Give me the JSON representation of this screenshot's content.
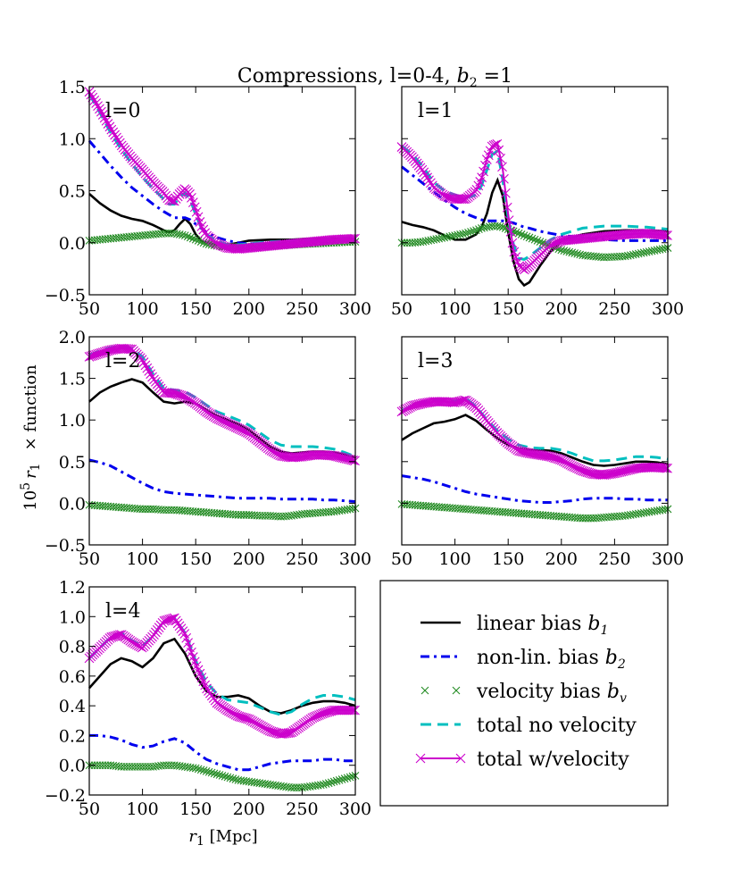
{
  "title": "Compressions, l=0-4, ",
  "title_math": "b",
  "title_math_sub": "2",
  "title_math_tail": " =1",
  "ylabel_pre": "10",
  "ylabel_sup": "5",
  "ylabel_var": "r",
  "ylabel_sub": "1",
  "ylabel_post": "× function",
  "xlabel_var": "r",
  "xlabel_sub": "1",
  "xlabel_post": " [Mpc]",
  "legend": [
    {
      "label": "linear bias ",
      "math": "b",
      "sub": "1"
    },
    {
      "label": "non-lin. bias ",
      "math": "b",
      "sub": "2"
    },
    {
      "label": "velocity bias ",
      "math": "b",
      "sub": "v"
    },
    {
      "label": "total no velocity",
      "math": "",
      "sub": ""
    },
    {
      "label": "total w/velocity",
      "math": "",
      "sub": ""
    }
  ],
  "colors": {
    "linear": "#000000",
    "nonlin": "#0000ee",
    "velocity": "#228b22",
    "total_novel": "#00bfbf",
    "total_vel": "#cc00cc"
  },
  "chart_data": [
    {
      "type": "line",
      "panel_label": "l=0",
      "xlim": [
        50,
        300
      ],
      "ylim": [
        -0.5,
        1.5
      ],
      "xticks": [
        "50",
        "100",
        "150",
        "200",
        "250",
        "300"
      ],
      "yticks": [
        "−0.5",
        "0.0",
        "0.5",
        "1.0",
        "1.5"
      ],
      "ytick_values": [
        -0.5,
        0.0,
        0.5,
        1.0,
        1.5
      ],
      "x": [
        50,
        60,
        70,
        80,
        90,
        100,
        110,
        120,
        125,
        130,
        135,
        140,
        145,
        150,
        155,
        160,
        170,
        180,
        190,
        200,
        220,
        240,
        260,
        280,
        300
      ],
      "series": [
        {
          "name": "linear bias",
          "values": [
            0.47,
            0.38,
            0.31,
            0.26,
            0.23,
            0.21,
            0.17,
            0.12,
            0.1,
            0.12,
            0.18,
            0.23,
            0.18,
            0.08,
            0.02,
            0.0,
            -0.02,
            -0.02,
            0.0,
            0.02,
            0.03,
            0.03,
            0.04,
            0.04,
            0.04
          ]
        },
        {
          "name": "non-lin. bias",
          "values": [
            0.98,
            0.86,
            0.74,
            0.63,
            0.53,
            0.45,
            0.37,
            0.3,
            0.27,
            0.24,
            0.24,
            0.24,
            0.22,
            0.18,
            0.14,
            0.1,
            0.05,
            0.02,
            0.0,
            -0.01,
            -0.01,
            0.0,
            0.0,
            0.01,
            0.01
          ]
        },
        {
          "name": "velocity bias",
          "values": [
            0.02,
            0.03,
            0.04,
            0.05,
            0.06,
            0.07,
            0.08,
            0.09,
            0.09,
            0.09,
            0.08,
            0.07,
            0.05,
            0.03,
            0.01,
            -0.01,
            -0.03,
            -0.04,
            -0.04,
            -0.04,
            -0.03,
            -0.02,
            -0.01,
            0.0,
            0.01
          ]
        },
        {
          "name": "total no velocity",
          "values": [
            1.43,
            1.25,
            1.06,
            0.9,
            0.76,
            0.63,
            0.52,
            0.42,
            0.37,
            0.37,
            0.44,
            0.48,
            0.41,
            0.27,
            0.15,
            0.08,
            0.02,
            -0.02,
            -0.02,
            -0.01,
            0.01,
            0.02,
            0.03,
            0.04,
            0.04
          ]
        },
        {
          "name": "total w/velocity",
          "values": [
            1.45,
            1.28,
            1.1,
            0.94,
            0.81,
            0.7,
            0.58,
            0.48,
            0.41,
            0.4,
            0.47,
            0.52,
            0.46,
            0.32,
            0.17,
            0.07,
            -0.01,
            -0.05,
            -0.06,
            -0.05,
            -0.03,
            -0.01,
            0.01,
            0.03,
            0.04
          ]
        }
      ]
    },
    {
      "type": "line",
      "panel_label": "l=1",
      "xlim": [
        50,
        300
      ],
      "ylim": [
        -0.5,
        1.5
      ],
      "xticks": [
        "50",
        "100",
        "150",
        "200",
        "250",
        "300"
      ],
      "yticks": [],
      "ytick_values": [
        -0.5,
        0.0,
        0.5,
        1.0,
        1.5
      ],
      "x": [
        50,
        60,
        70,
        80,
        90,
        100,
        110,
        120,
        125,
        130,
        135,
        140,
        145,
        150,
        155,
        160,
        165,
        170,
        180,
        190,
        200,
        220,
        240,
        260,
        280,
        300
      ],
      "series": [
        {
          "name": "linear bias",
          "values": [
            0.2,
            0.17,
            0.15,
            0.12,
            0.07,
            0.03,
            0.03,
            0.08,
            0.15,
            0.28,
            0.48,
            0.6,
            0.45,
            0.1,
            -0.18,
            -0.35,
            -0.41,
            -0.38,
            -0.22,
            -0.08,
            0.02,
            0.08,
            0.11,
            0.12,
            0.12,
            0.11
          ]
        },
        {
          "name": "non-lin. bias",
          "values": [
            0.73,
            0.65,
            0.57,
            0.49,
            0.41,
            0.34,
            0.28,
            0.24,
            0.22,
            0.21,
            0.21,
            0.21,
            0.21,
            0.2,
            0.19,
            0.17,
            0.15,
            0.14,
            0.11,
            0.09,
            0.07,
            0.05,
            0.03,
            0.02,
            0.02,
            0.02
          ]
        },
        {
          "name": "velocity bias",
          "values": [
            0.0,
            0.0,
            0.01,
            0.03,
            0.05,
            0.07,
            0.09,
            0.12,
            0.14,
            0.15,
            0.16,
            0.16,
            0.15,
            0.13,
            0.11,
            0.09,
            0.07,
            0.05,
            0.01,
            -0.03,
            -0.07,
            -0.12,
            -0.14,
            -0.13,
            -0.09,
            -0.05
          ]
        },
        {
          "name": "total no velocity",
          "values": [
            0.93,
            0.85,
            0.73,
            0.58,
            0.5,
            0.46,
            0.43,
            0.46,
            0.55,
            0.7,
            0.85,
            0.88,
            0.6,
            0.24,
            -0.02,
            -0.15,
            -0.16,
            -0.13,
            -0.05,
            0.03,
            0.08,
            0.14,
            0.16,
            0.16,
            0.15,
            0.13
          ]
        },
        {
          "name": "total w/velocity",
          "values": [
            0.92,
            0.82,
            0.69,
            0.53,
            0.45,
            0.42,
            0.42,
            0.5,
            0.62,
            0.8,
            0.93,
            0.95,
            0.7,
            0.27,
            -0.07,
            -0.22,
            -0.26,
            -0.22,
            -0.12,
            -0.02,
            0.02,
            0.04,
            0.06,
            0.08,
            0.09,
            0.07
          ]
        }
      ]
    },
    {
      "type": "line",
      "panel_label": "l=2",
      "xlim": [
        50,
        300
      ],
      "ylim": [
        -0.5,
        2.0
      ],
      "xticks": [
        "50",
        "100",
        "150",
        "200",
        "250",
        "300"
      ],
      "yticks": [
        "−0.5",
        "0.0",
        "0.5",
        "1.0",
        "1.5",
        "2.0"
      ],
      "ytick_values": [
        -0.5,
        0.0,
        0.5,
        1.0,
        1.5,
        2.0
      ],
      "x": [
        50,
        60,
        70,
        80,
        90,
        100,
        110,
        120,
        130,
        140,
        150,
        160,
        170,
        180,
        190,
        200,
        210,
        220,
        230,
        240,
        250,
        260,
        270,
        280,
        290,
        300
      ],
      "series": [
        {
          "name": "linear bias",
          "values": [
            1.22,
            1.33,
            1.4,
            1.45,
            1.49,
            1.45,
            1.33,
            1.22,
            1.2,
            1.22,
            1.2,
            1.12,
            1.05,
            1.0,
            0.95,
            0.88,
            0.78,
            0.68,
            0.62,
            0.6,
            0.61,
            0.62,
            0.62,
            0.61,
            0.58,
            0.55
          ]
        },
        {
          "name": "non-lin. bias",
          "values": [
            0.52,
            0.49,
            0.45,
            0.38,
            0.31,
            0.24,
            0.18,
            0.14,
            0.12,
            0.11,
            0.1,
            0.09,
            0.08,
            0.07,
            0.06,
            0.06,
            0.06,
            0.06,
            0.05,
            0.05,
            0.05,
            0.05,
            0.04,
            0.04,
            0.03,
            0.02
          ]
        },
        {
          "name": "velocity bias",
          "values": [
            -0.02,
            -0.03,
            -0.04,
            -0.05,
            -0.06,
            -0.07,
            -0.07,
            -0.08,
            -0.08,
            -0.09,
            -0.1,
            -0.11,
            -0.12,
            -0.13,
            -0.14,
            -0.14,
            -0.15,
            -0.15,
            -0.16,
            -0.15,
            -0.13,
            -0.12,
            -0.11,
            -0.1,
            -0.08,
            -0.06
          ]
        },
        {
          "name": "total no velocity",
          "values": [
            1.78,
            1.83,
            1.87,
            1.88,
            1.86,
            1.76,
            1.55,
            1.38,
            1.36,
            1.34,
            1.27,
            1.18,
            1.1,
            1.05,
            1.0,
            0.94,
            0.85,
            0.76,
            0.7,
            0.68,
            0.68,
            0.68,
            0.67,
            0.65,
            0.61,
            0.56
          ]
        },
        {
          "name": "total w/velocity",
          "values": [
            1.76,
            1.8,
            1.84,
            1.86,
            1.85,
            1.72,
            1.5,
            1.33,
            1.32,
            1.28,
            1.2,
            1.1,
            1.02,
            0.96,
            0.9,
            0.84,
            0.74,
            0.64,
            0.57,
            0.55,
            0.56,
            0.58,
            0.58,
            0.57,
            0.54,
            0.51
          ]
        }
      ]
    },
    {
      "type": "line",
      "panel_label": "l=3",
      "xlim": [
        50,
        300
      ],
      "ylim": [
        -0.5,
        2.0
      ],
      "xticks": [
        "50",
        "100",
        "150",
        "200",
        "250",
        "300"
      ],
      "yticks": [],
      "ytick_values": [
        -0.5,
        0.0,
        0.5,
        1.0,
        1.5,
        2.0
      ],
      "x": [
        50,
        60,
        70,
        80,
        90,
        100,
        110,
        120,
        130,
        140,
        150,
        160,
        170,
        180,
        190,
        200,
        210,
        220,
        230,
        240,
        250,
        260,
        270,
        280,
        290,
        300
      ],
      "series": [
        {
          "name": "linear bias",
          "values": [
            0.76,
            0.84,
            0.9,
            0.96,
            0.98,
            1.01,
            1.06,
            0.99,
            0.88,
            0.78,
            0.7,
            0.66,
            0.64,
            0.64,
            0.63,
            0.6,
            0.55,
            0.5,
            0.46,
            0.45,
            0.46,
            0.48,
            0.5,
            0.5,
            0.49,
            0.47
          ]
        },
        {
          "name": "non-lin. bias",
          "values": [
            0.33,
            0.31,
            0.29,
            0.26,
            0.22,
            0.18,
            0.14,
            0.11,
            0.09,
            0.07,
            0.05,
            0.03,
            0.02,
            0.01,
            0.01,
            0.02,
            0.03,
            0.05,
            0.06,
            0.06,
            0.06,
            0.05,
            0.05,
            0.04,
            0.04,
            0.04
          ]
        },
        {
          "name": "velocity bias",
          "values": [
            -0.01,
            -0.02,
            -0.03,
            -0.04,
            -0.05,
            -0.06,
            -0.07,
            -0.08,
            -0.09,
            -0.1,
            -0.11,
            -0.12,
            -0.13,
            -0.14,
            -0.15,
            -0.16,
            -0.17,
            -0.18,
            -0.18,
            -0.17,
            -0.16,
            -0.15,
            -0.13,
            -0.11,
            -0.09,
            -0.07
          ]
        },
        {
          "name": "total no velocity",
          "values": [
            1.11,
            1.18,
            1.22,
            1.24,
            1.23,
            1.23,
            1.26,
            1.16,
            1.0,
            0.87,
            0.77,
            0.7,
            0.67,
            0.66,
            0.66,
            0.64,
            0.6,
            0.55,
            0.51,
            0.51,
            0.52,
            0.54,
            0.56,
            0.56,
            0.55,
            0.53
          ]
        },
        {
          "name": "total w/velocity",
          "values": [
            1.1,
            1.17,
            1.2,
            1.22,
            1.22,
            1.21,
            1.24,
            1.15,
            0.99,
            0.84,
            0.72,
            0.63,
            0.6,
            0.58,
            0.56,
            0.52,
            0.45,
            0.39,
            0.35,
            0.34,
            0.36,
            0.39,
            0.42,
            0.43,
            0.43,
            0.42
          ]
        }
      ]
    },
    {
      "type": "line",
      "panel_label": "l=4",
      "xlim": [
        50,
        300
      ],
      "ylim": [
        -0.2,
        1.2
      ],
      "xticks": [
        "50",
        "100",
        "150",
        "200",
        "250",
        "300"
      ],
      "yticks": [
        "−0.2",
        "0.0",
        "0.2",
        "0.4",
        "0.6",
        "0.8",
        "1.0",
        "1.2"
      ],
      "ytick_values": [
        -0.2,
        0.0,
        0.2,
        0.4,
        0.6,
        0.8,
        1.0,
        1.2
      ],
      "x": [
        50,
        60,
        70,
        80,
        90,
        100,
        110,
        120,
        130,
        140,
        150,
        160,
        170,
        180,
        190,
        200,
        210,
        220,
        230,
        240,
        250,
        260,
        270,
        280,
        290,
        300
      ],
      "series": [
        {
          "name": "linear bias",
          "values": [
            0.52,
            0.6,
            0.68,
            0.72,
            0.7,
            0.66,
            0.72,
            0.82,
            0.85,
            0.75,
            0.6,
            0.5,
            0.46,
            0.46,
            0.47,
            0.45,
            0.4,
            0.36,
            0.35,
            0.37,
            0.4,
            0.42,
            0.43,
            0.43,
            0.42,
            0.4
          ]
        },
        {
          "name": "non-lin. bias",
          "values": [
            0.2,
            0.2,
            0.19,
            0.17,
            0.14,
            0.12,
            0.13,
            0.16,
            0.18,
            0.15,
            0.09,
            0.04,
            0.01,
            -0.01,
            -0.03,
            -0.03,
            -0.01,
            0.01,
            0.02,
            0.03,
            0.03,
            0.03,
            0.04,
            0.04,
            0.03,
            0.03
          ]
        },
        {
          "name": "velocity bias",
          "values": [
            0.0,
            0.0,
            0.0,
            -0.01,
            -0.01,
            -0.01,
            -0.01,
            0.0,
            0.0,
            -0.01,
            -0.02,
            -0.04,
            -0.06,
            -0.08,
            -0.1,
            -0.11,
            -0.12,
            -0.13,
            -0.14,
            -0.15,
            -0.15,
            -0.14,
            -0.13,
            -0.11,
            -0.09,
            -0.07
          ]
        },
        {
          "name": "total no velocity",
          "values": [
            0.72,
            0.79,
            0.86,
            0.89,
            0.84,
            0.8,
            0.87,
            0.97,
            0.99,
            0.89,
            0.7,
            0.56,
            0.48,
            0.44,
            0.43,
            0.42,
            0.39,
            0.36,
            0.34,
            0.36,
            0.41,
            0.45,
            0.47,
            0.47,
            0.46,
            0.44
          ]
        },
        {
          "name": "total w/velocity",
          "values": [
            0.72,
            0.79,
            0.86,
            0.88,
            0.83,
            0.79,
            0.87,
            0.97,
            0.99,
            0.88,
            0.68,
            0.52,
            0.42,
            0.37,
            0.33,
            0.31,
            0.27,
            0.23,
            0.21,
            0.22,
            0.27,
            0.32,
            0.35,
            0.37,
            0.37,
            0.37
          ]
        }
      ]
    }
  ]
}
